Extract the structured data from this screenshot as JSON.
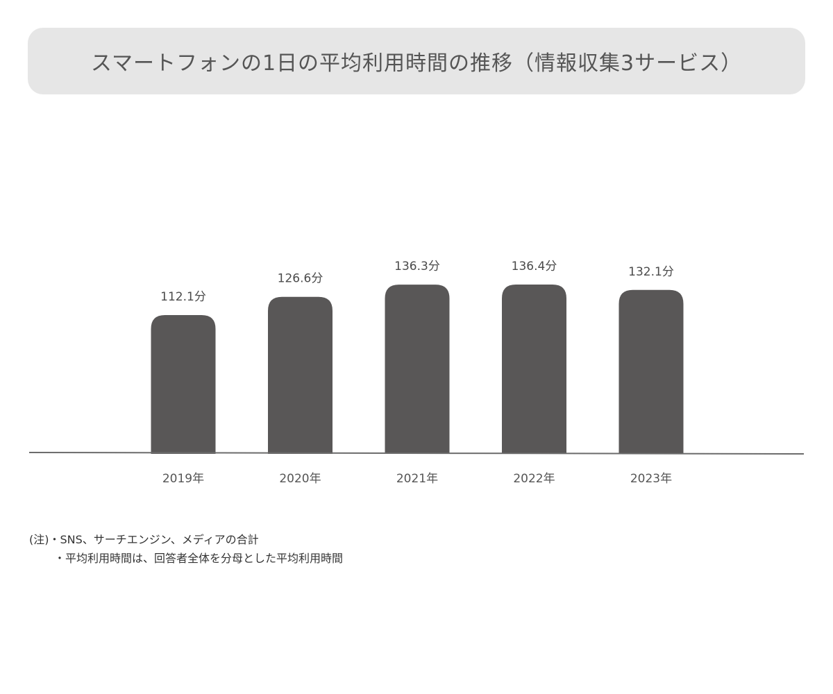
{
  "title": "スマートフォンの1日の平均利用時間の推移（情報収集3サービス）",
  "chart_data": {
    "type": "bar",
    "categories": [
      "2019年",
      "2020年",
      "2021年",
      "2022年",
      "2023年"
    ],
    "values": [
      112.1,
      126.6,
      136.3,
      136.4,
      132.1
    ],
    "value_labels": [
      "112.1分",
      "126.6分",
      "136.3分",
      "136.4分",
      "132.1分"
    ],
    "unit": "分",
    "bar_color": "#595757",
    "axis_color": "#6b6b6b",
    "grid": false,
    "legend": "none"
  },
  "notes": {
    "line1": "(注)・SNS、サーチエンジン、メディアの合計",
    "line2": "・平均利用時間は、回答者全体を分母とした平均利用時間"
  }
}
